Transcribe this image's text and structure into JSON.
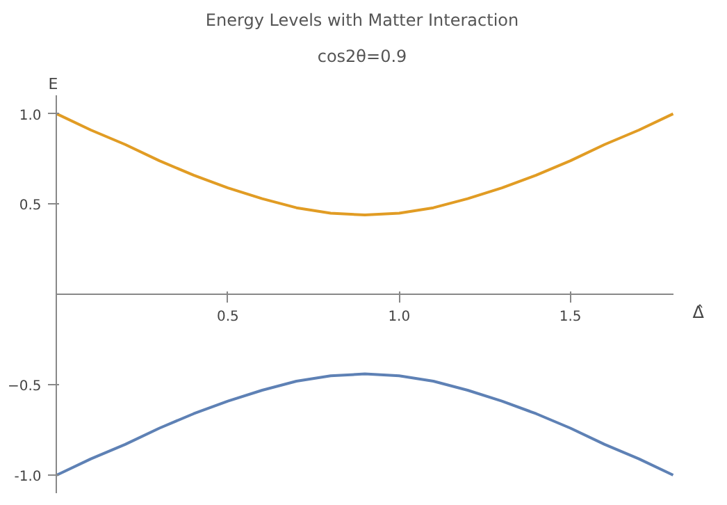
{
  "chart_data": {
    "type": "line",
    "title": "Energy Levels with Matter Interaction",
    "subtitle": "cos2θ=0.9",
    "xlabel": "Δ̂",
    "ylabel": "E",
    "x": [
      0,
      0.1,
      0.2,
      0.3,
      0.4,
      0.5,
      0.6,
      0.7,
      0.8,
      0.9,
      1.0,
      1.1,
      1.2,
      1.3,
      1.4,
      1.5,
      1.6,
      1.7,
      1.8
    ],
    "series": [
      {
        "color": "#5e81b5",
        "values": [
          -1.0,
          -0.91,
          -0.83,
          -0.74,
          -0.66,
          -0.59,
          -0.53,
          -0.48,
          -0.45,
          -0.44,
          -0.45,
          -0.48,
          -0.53,
          -0.59,
          -0.66,
          -0.74,
          -0.83,
          -0.91,
          -1.0
        ]
      },
      {
        "color": "#e19c24",
        "values": [
          1.0,
          0.91,
          0.83,
          0.74,
          0.66,
          0.59,
          0.53,
          0.48,
          0.45,
          0.44,
          0.45,
          0.48,
          0.53,
          0.59,
          0.66,
          0.74,
          0.83,
          0.91,
          1.0
        ]
      }
    ],
    "xlim": [
      0,
      1.8
    ],
    "ylim": [
      -1.1,
      1.1
    ],
    "xticks": [
      0.5,
      {
        "value": 1.0,
        "label": "1.0"
      },
      1.5
    ],
    "yticks": [
      {
        "value": -1.0,
        "label": "-1.0"
      },
      -0.5,
      0.5,
      {
        "value": 1.0,
        "label": "1.0"
      }
    ],
    "grid": false,
    "marker": "none",
    "line_style": "solid"
  }
}
